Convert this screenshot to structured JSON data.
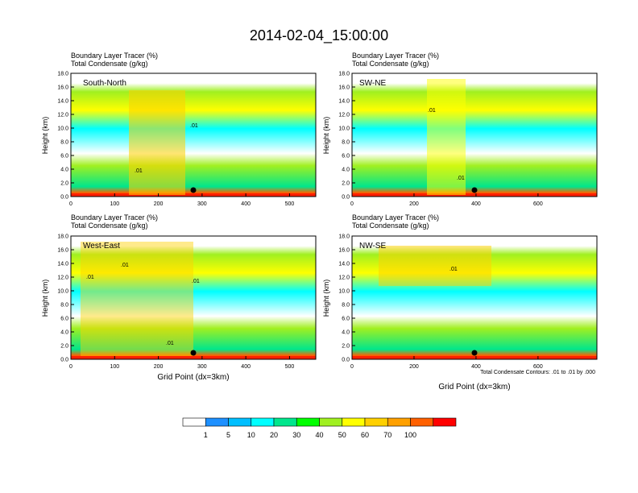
{
  "title": "2014-02-04_15:00:00",
  "chart_data": {
    "type": "heatmap",
    "panel_title_line1": "Boundary Layer Tracer   (%)",
    "panel_title_line2": "Total Condensate   (g/kg)",
    "ylabel": "Height (km)",
    "xlabel": "Grid Point (dx=3km)",
    "contour_note": "Total Condensate Contours: .01 to .01 by .000",
    "contour_label": ".01",
    "y_ticks": [
      "0.0",
      "2.0",
      "4.0",
      "6.0",
      "8.0",
      "10.0",
      "12.0",
      "14.0",
      "16.0",
      "18.0"
    ],
    "ylim": [
      0,
      18
    ],
    "panels": [
      {
        "name": "South-North",
        "xlim": [
          0,
          560
        ],
        "x_ticks": [
          0,
          100,
          200,
          300,
          400,
          500
        ],
        "marker_x": 280,
        "show_xlabel": false
      },
      {
        "name": "SW-NE",
        "xlim": [
          0,
          790
        ],
        "x_ticks": [
          0,
          200,
          400,
          600
        ],
        "marker_x": 395,
        "show_xlabel": false
      },
      {
        "name": "West-East",
        "xlim": [
          0,
          560
        ],
        "x_ticks": [
          0,
          100,
          200,
          300,
          400,
          500
        ],
        "marker_x": 280,
        "show_xlabel": true
      },
      {
        "name": "NW-SE",
        "xlim": [
          0,
          790
        ],
        "x_ticks": [
          0,
          200,
          400,
          600
        ],
        "marker_x": 395,
        "show_xlabel": true
      }
    ],
    "colorbar": {
      "levels": [
        "1",
        "5",
        "10",
        "20",
        "30",
        "40",
        "50",
        "60",
        "70",
        "100"
      ],
      "colors": [
        "#ffffff",
        "#1e90ff",
        "#00bfff",
        "#00ffff",
        "#00e68c",
        "#00ff00",
        "#a0f020",
        "#ffff00",
        "#ffd000",
        "#ffa000",
        "#ff6000",
        "#ff0000"
      ]
    }
  }
}
